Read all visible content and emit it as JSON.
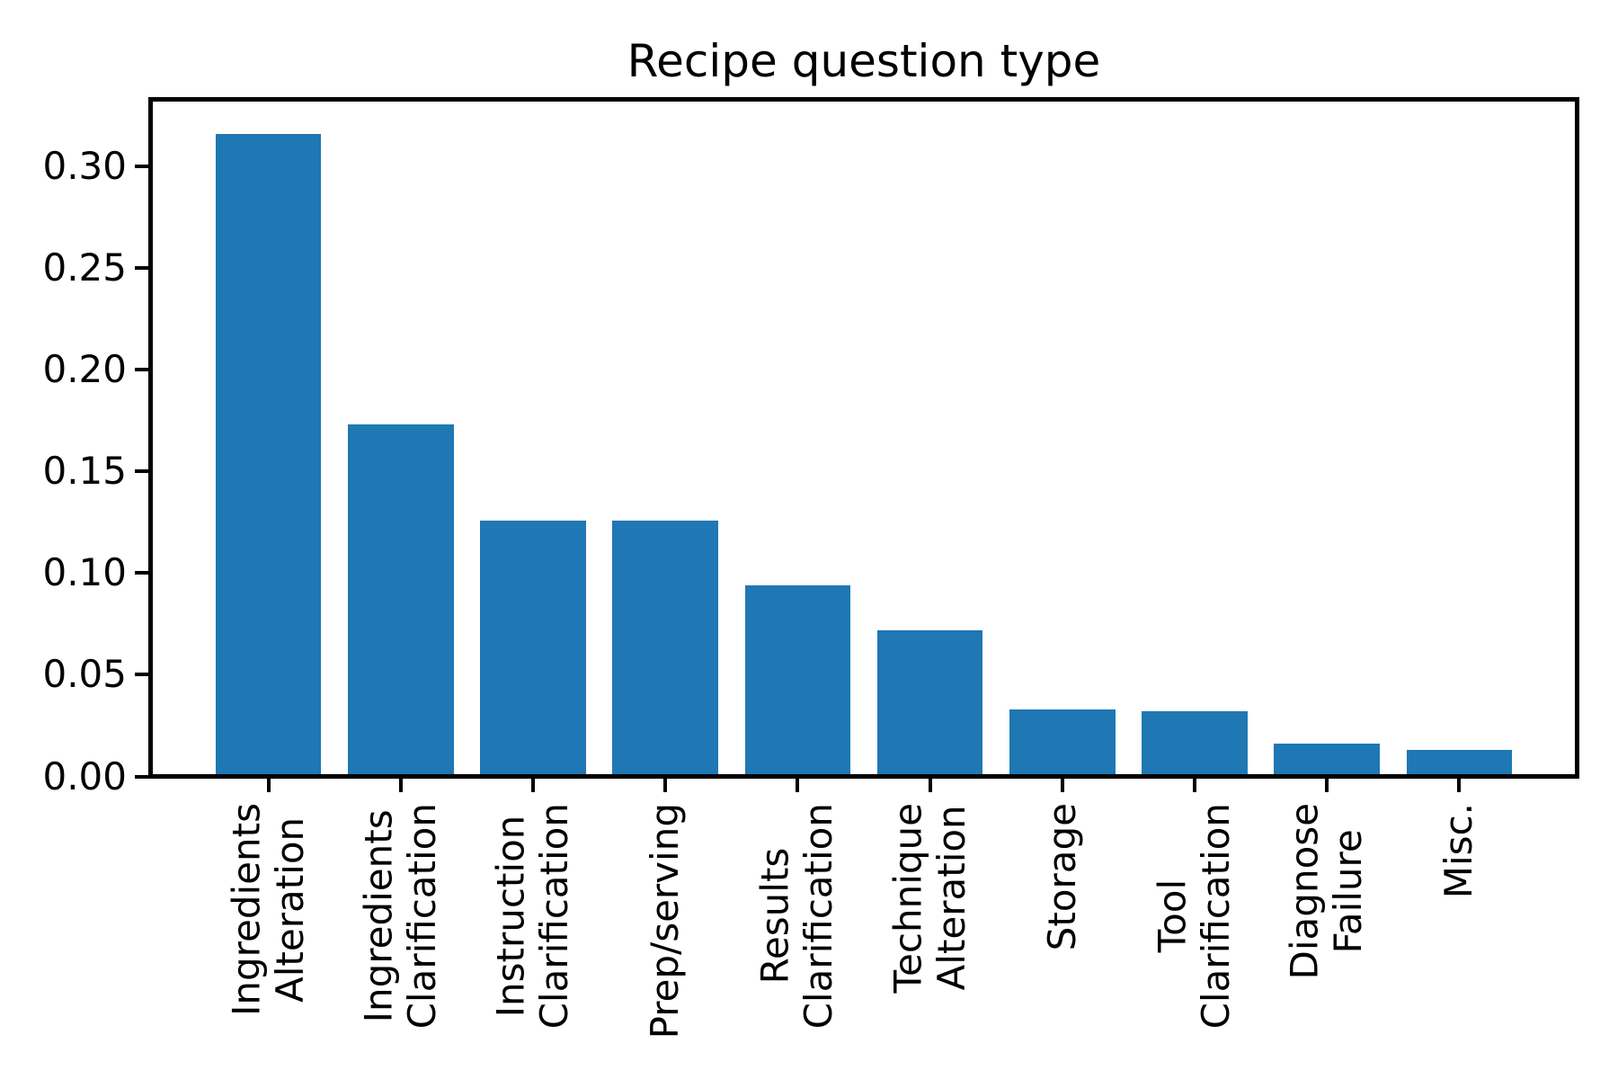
{
  "figure": {
    "background_color": "#ffffff",
    "text_color": "#000000"
  },
  "chart_data": {
    "type": "bar",
    "title": "Recipe question type",
    "xlabel": "",
    "ylabel": "",
    "categories": [
      "Ingredients\nAlteration",
      "Ingredients\nClarification",
      "Instruction\nClarification",
      "Prep/serving",
      "Results\nClarification",
      "Technique\nAlteration",
      "Storage",
      "Tool\nClarification",
      "Diagnose\nFailure",
      "Misc."
    ],
    "values": [
      0.316,
      0.173,
      0.126,
      0.126,
      0.094,
      0.072,
      0.033,
      0.032,
      0.016,
      0.013
    ],
    "bar_color": "#1f77b4",
    "ylim": [
      0,
      0.333
    ],
    "yticks": [
      0.0,
      0.05,
      0.1,
      0.15,
      0.2,
      0.25,
      0.3
    ],
    "ytick_labels": [
      "0.00",
      "0.05",
      "0.10",
      "0.15",
      "0.20",
      "0.25",
      "0.30"
    ],
    "x_tick_label_rotation_deg": 90,
    "grid": false,
    "legend_position": "none"
  }
}
